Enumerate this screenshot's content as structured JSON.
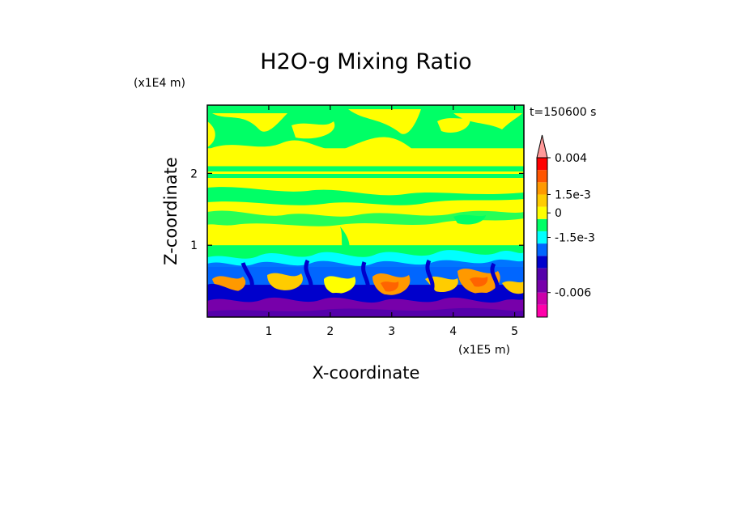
{
  "chart_data": {
    "type": "heatmap",
    "title": "H2O-g Mixing Ratio",
    "xlabel": "X-coordinate",
    "ylabel": "Z-coordinate",
    "x_unit": "(x1E5 m)",
    "y_unit": "(x1E4 m)",
    "time_label": "t=150600 s",
    "xlim": [
      0,
      5.15
    ],
    "ylim": [
      0,
      2.95
    ],
    "x_ticks": [
      {
        "value": 1,
        "label": "1"
      },
      {
        "value": 2,
        "label": "2"
      },
      {
        "value": 3,
        "label": "3"
      },
      {
        "value": 4,
        "label": "4"
      },
      {
        "value": 5,
        "label": "5"
      }
    ],
    "y_ticks": [
      {
        "value": 1,
        "label": "1"
      },
      {
        "value": 2,
        "label": "2"
      }
    ],
    "colorbar": {
      "levels": [
        {
          "color": "#ff00aa"
        },
        {
          "color": "#cc00aa"
        },
        {
          "color": "#7700aa"
        },
        {
          "color": "#5500aa"
        },
        {
          "color": "#0000cc"
        },
        {
          "color": "#0066ff"
        },
        {
          "color": "#00ffff"
        },
        {
          "color": "#00ff66"
        },
        {
          "color": "#ffff00"
        },
        {
          "color": "#ffcc00"
        },
        {
          "color": "#ff9900"
        },
        {
          "color": "#ff5500"
        },
        {
          "color": "#ff0000"
        },
        {
          "color": "#ff9999"
        }
      ],
      "labels": [
        {
          "label": "0.004",
          "level": 13
        },
        {
          "label": "1.5e-3",
          "level": 10
        },
        {
          "label": "0",
          "level": 8.5
        },
        {
          "label": "-1.5e-3",
          "level": 6.5
        },
        {
          "label": "-0.006",
          "level": 2
        }
      ]
    },
    "field_bands": [
      {
        "z_from": 2.35,
        "z_to": 2.95,
        "level": "#00ff66"
      },
      {
        "z_from": 1.95,
        "z_to": 2.1,
        "level": "#00ff66"
      },
      {
        "z_from": 1.0,
        "z_to": 1.95,
        "level": "#ffff00"
      },
      {
        "z_from": 0.7,
        "z_to": 1.0,
        "level": "#00ff66"
      },
      {
        "z_from": 0.45,
        "z_to": 0.7,
        "level": "#0066ff"
      },
      {
        "z_from": 0.25,
        "z_to": 0.45,
        "level": "#0000cc"
      },
      {
        "z_from": 0.0,
        "z_to": 0.25,
        "level": "#7700aa"
      }
    ]
  }
}
